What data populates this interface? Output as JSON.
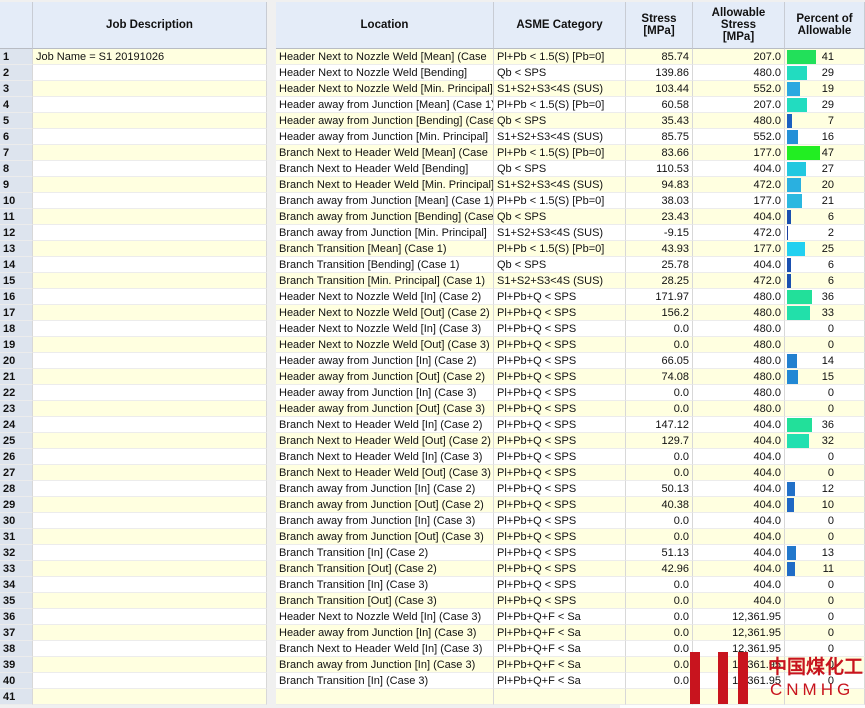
{
  "job_table": {
    "header": "Job Description",
    "row_numbers": [
      1,
      2,
      3,
      4,
      5,
      6,
      7,
      8,
      9,
      10,
      11,
      12,
      13,
      14,
      15,
      16,
      17,
      18,
      19,
      20,
      21,
      22,
      23,
      24,
      25,
      26,
      27,
      28,
      29,
      30,
      31,
      32,
      33,
      34,
      35,
      36,
      37,
      38,
      39,
      40,
      41
    ],
    "values": [
      "Job Name = S1 20191026"
    ]
  },
  "results_table": {
    "headers": {
      "location": [
        "Location"
      ],
      "category": [
        "ASME Category"
      ],
      "stress": [
        "Stress",
        "[MPa]"
      ],
      "allowable": [
        "Allowable",
        "Stress",
        "[MPa]"
      ],
      "percent": [
        "Percent of",
        "Allowable"
      ]
    },
    "rows": [
      {
        "location": "Header Next to Nozzle Weld [Mean] (Case",
        "category": "Pl+Pb < 1.5(S) [Pb=0]",
        "stress": "85.74",
        "allowable": "207.0",
        "percent": 41,
        "bar_color": "#22e05a"
      },
      {
        "location": "Header Next to Nozzle Weld [Bending]",
        "category": "Qb < SPS",
        "stress": "139.86",
        "allowable": "480.0",
        "percent": 29,
        "bar_color": "#22dcc0"
      },
      {
        "location": "Header Next to Nozzle Weld [Min. Principal]",
        "category": "S1+S2+S3<4S (SUS)",
        "stress": "103.44",
        "allowable": "552.0",
        "percent": 19,
        "bar_color": "#2aa8e0"
      },
      {
        "location": "Header away from Junction [Mean] (Case 1)",
        "category": "Pl+Pb < 1.5(S) [Pb=0]",
        "stress": "60.58",
        "allowable": "207.0",
        "percent": 29,
        "bar_color": "#22dcc0"
      },
      {
        "location": "Header away from Junction [Bending] (Case",
        "category": "Qb < SPS",
        "stress": "35.43",
        "allowable": "480.0",
        "percent": 7,
        "bar_color": "#1a60c0"
      },
      {
        "location": "Header away from Junction [Min. Principal]",
        "category": "S1+S2+S3<4S (SUS)",
        "stress": "85.75",
        "allowable": "552.0",
        "percent": 16,
        "bar_color": "#2490d8"
      },
      {
        "location": "Branch Next to Header Weld [Mean] (Case",
        "category": "Pl+Pb < 1.5(S) [Pb=0]",
        "stress": "83.66",
        "allowable": "177.0",
        "percent": 47,
        "bar_color": "#22ee22"
      },
      {
        "location": "Branch Next to Header Weld [Bending]",
        "category": "Qb < SPS",
        "stress": "110.53",
        "allowable": "404.0",
        "percent": 27,
        "bar_color": "#22c8e0"
      },
      {
        "location": "Branch Next to Header Weld [Min. Principal]",
        "category": "S1+S2+S3<4S (SUS)",
        "stress": "94.83",
        "allowable": "472.0",
        "percent": 20,
        "bar_color": "#2ab0e0"
      },
      {
        "location": "Branch away from Junction [Mean] (Case 1)",
        "category": "Pl+Pb < 1.5(S) [Pb=0]",
        "stress": "38.03",
        "allowable": "177.0",
        "percent": 21,
        "bar_color": "#2ab8e0"
      },
      {
        "location": "Branch away from Junction [Bending] (Case",
        "category": "Qb < SPS",
        "stress": "23.43",
        "allowable": "404.0",
        "percent": 6,
        "bar_color": "#1a50b0"
      },
      {
        "location": "Branch away from Junction [Min. Principal]",
        "category": "S1+S2+S3<4S (SUS)",
        "stress": "-9.15",
        "allowable": "472.0",
        "percent": 2,
        "bar_color": "#1a40a0"
      },
      {
        "location": "Branch Transition [Mean] (Case 1)",
        "category": "Pl+Pb < 1.5(S) [Pb=0]",
        "stress": "43.93",
        "allowable": "177.0",
        "percent": 25,
        "bar_color": "#22d0f0"
      },
      {
        "location": "Branch Transition [Bending] (Case 1)",
        "category": "Qb < SPS",
        "stress": "25.78",
        "allowable": "404.0",
        "percent": 6,
        "bar_color": "#1a50b0"
      },
      {
        "location": "Branch Transition [Min. Principal] (Case 1)",
        "category": "S1+S2+S3<4S (SUS)",
        "stress": "28.25",
        "allowable": "472.0",
        "percent": 6,
        "bar_color": "#1a50b0"
      },
      {
        "location": "Header Next to Nozzle Weld [In] (Case 2)",
        "category": "Pl+Pb+Q < SPS",
        "stress": "171.97",
        "allowable": "480.0",
        "percent": 36,
        "bar_color": "#22e09a"
      },
      {
        "location": "Header Next to Nozzle Weld [Out] (Case 2)",
        "category": "Pl+Pb+Q < SPS",
        "stress": "156.2",
        "allowable": "480.0",
        "percent": 33,
        "bar_color": "#22e0aa"
      },
      {
        "location": "Header Next to Nozzle Weld [In] (Case 3)",
        "category": "Pl+Pb+Q < SPS",
        "stress": "0.0",
        "allowable": "480.0",
        "percent": 0
      },
      {
        "location": "Header Next to Nozzle Weld [Out] (Case 3)",
        "category": "Pl+Pb+Q < SPS",
        "stress": "0.0",
        "allowable": "480.0",
        "percent": 0
      },
      {
        "location": "Header away from Junction [In] (Case 2)",
        "category": "Pl+Pb+Q < SPS",
        "stress": "66.05",
        "allowable": "480.0",
        "percent": 14,
        "bar_color": "#2280d0"
      },
      {
        "location": "Header away from Junction [Out] (Case 2)",
        "category": "Pl+Pb+Q < SPS",
        "stress": "74.08",
        "allowable": "480.0",
        "percent": 15,
        "bar_color": "#2288d4"
      },
      {
        "location": "Header away from Junction [In] (Case 3)",
        "category": "Pl+Pb+Q < SPS",
        "stress": "0.0",
        "allowable": "480.0",
        "percent": 0
      },
      {
        "location": "Header away from Junction [Out] (Case 3)",
        "category": "Pl+Pb+Q < SPS",
        "stress": "0.0",
        "allowable": "480.0",
        "percent": 0
      },
      {
        "location": "Branch Next to Header Weld [In] (Case 2)",
        "category": "Pl+Pb+Q < SPS",
        "stress": "147.12",
        "allowable": "404.0",
        "percent": 36,
        "bar_color": "#22e09a"
      },
      {
        "location": "Branch Next to Header Weld [Out] (Case 2)",
        "category": "Pl+Pb+Q < SPS",
        "stress": "129.7",
        "allowable": "404.0",
        "percent": 32,
        "bar_color": "#22e0b0"
      },
      {
        "location": "Branch Next to Header Weld [In] (Case 3)",
        "category": "Pl+Pb+Q < SPS",
        "stress": "0.0",
        "allowable": "404.0",
        "percent": 0
      },
      {
        "location": "Branch Next to Header Weld [Out] (Case 3)",
        "category": "Pl+Pb+Q < SPS",
        "stress": "0.0",
        "allowable": "404.0",
        "percent": 0
      },
      {
        "location": "Branch away from Junction [In] (Case 2)",
        "category": "Pl+Pb+Q < SPS",
        "stress": "50.13",
        "allowable": "404.0",
        "percent": 12,
        "bar_color": "#2270c8"
      },
      {
        "location": "Branch away from Junction [Out] (Case 2)",
        "category": "Pl+Pb+Q < SPS",
        "stress": "40.38",
        "allowable": "404.0",
        "percent": 10,
        "bar_color": "#2068c4"
      },
      {
        "location": "Branch away from Junction [In] (Case 3)",
        "category": "Pl+Pb+Q < SPS",
        "stress": "0.0",
        "allowable": "404.0",
        "percent": 0
      },
      {
        "location": "Branch away from Junction [Out] (Case 3)",
        "category": "Pl+Pb+Q < SPS",
        "stress": "0.0",
        "allowable": "404.0",
        "percent": 0
      },
      {
        "location": "Branch Transition [In] (Case 2)",
        "category": "Pl+Pb+Q < SPS",
        "stress": "51.13",
        "allowable": "404.0",
        "percent": 13,
        "bar_color": "#2278cc"
      },
      {
        "location": "Branch Transition [Out] (Case 2)",
        "category": "Pl+Pb+Q < SPS",
        "stress": "42.96",
        "allowable": "404.0",
        "percent": 11,
        "bar_color": "#206cc6"
      },
      {
        "location": "Branch Transition [In] (Case 3)",
        "category": "Pl+Pb+Q < SPS",
        "stress": "0.0",
        "allowable": "404.0",
        "percent": 0
      },
      {
        "location": "Branch Transition [Out] (Case 3)",
        "category": "Pl+Pb+Q < SPS",
        "stress": "0.0",
        "allowable": "404.0",
        "percent": 0
      },
      {
        "location": "Header Next to Nozzle Weld [In] (Case 3)",
        "category": "Pl+Pb+Q+F < Sa",
        "stress": "0.0",
        "allowable": "12,361.95",
        "percent": 0
      },
      {
        "location": "Header away from Junction [In] (Case 3)",
        "category": "Pl+Pb+Q+F < Sa",
        "stress": "0.0",
        "allowable": "12,361.95",
        "percent": 0
      },
      {
        "location": "Branch Next to Header Weld [In] (Case 3)",
        "category": "Pl+Pb+Q+F < Sa",
        "stress": "0.0",
        "allowable": "12,361.95",
        "percent": 0
      },
      {
        "location": "Branch away from Junction [In] (Case 3)",
        "category": "Pl+Pb+Q+F < Sa",
        "stress": "0.0",
        "allowable": "12,361.95",
        "percent": 0
      },
      {
        "location": "Branch Transition [In] (Case 3)",
        "category": "Pl+Pb+Q+F < Sa",
        "stress": "0.0",
        "allowable": "12,361.95",
        "percent": 0
      }
    ]
  },
  "watermark": {
    "name": "中国煤化工",
    "code": "CNMHG"
  }
}
